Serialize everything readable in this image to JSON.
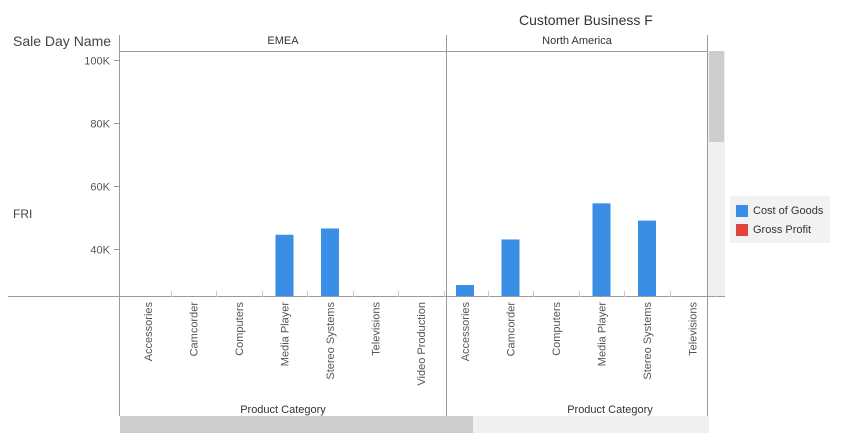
{
  "header": {
    "title": "Customer Business F"
  },
  "row_dimension": {
    "label": "Sale Day Name",
    "value": "FRI"
  },
  "legend": [
    {
      "label": "Cost of Goods",
      "color": "#3a8ee6"
    },
    {
      "label": "Gross Profit",
      "color": "#e0453a"
    }
  ],
  "colors": {
    "axis": "#9a9a9a",
    "tick_text": "#555555",
    "bar": "#3a8ee6"
  },
  "chart_data": {
    "type": "bar",
    "title": "Customer Business F",
    "ylim": [
      25000,
      103000
    ],
    "yticks": [
      40000,
      60000,
      80000,
      100000
    ],
    "ytick_labels": [
      "40K",
      "60K",
      "80K",
      "100K"
    ],
    "grid": false,
    "legend_position": "right",
    "panels": [
      {
        "name": "EMEA",
        "xlabel": "Product Category",
        "categories": [
          "Accessories",
          "Camcorder",
          "Computers",
          "Media Player",
          "Stereo Systems",
          "Televisions",
          "Video Production"
        ],
        "series": [
          {
            "name": "Cost of Goods",
            "values": [
              null,
              null,
              null,
              44500,
              46500,
              null,
              null
            ]
          },
          {
            "name": "Gross Profit",
            "values": [
              null,
              null,
              null,
              null,
              null,
              null,
              null
            ]
          }
        ]
      },
      {
        "name": "North America",
        "xlabel": "Product Category",
        "categories": [
          "Accessories",
          "Camcorder",
          "Computers",
          "Media Player",
          "Stereo Systems",
          "Televisions"
        ],
        "series": [
          {
            "name": "Cost of Goods",
            "values": [
              28500,
              43000,
              null,
              54500,
              49000,
              null
            ]
          },
          {
            "name": "Gross Profit",
            "values": [
              null,
              null,
              null,
              null,
              null,
              null
            ]
          }
        ]
      }
    ]
  }
}
